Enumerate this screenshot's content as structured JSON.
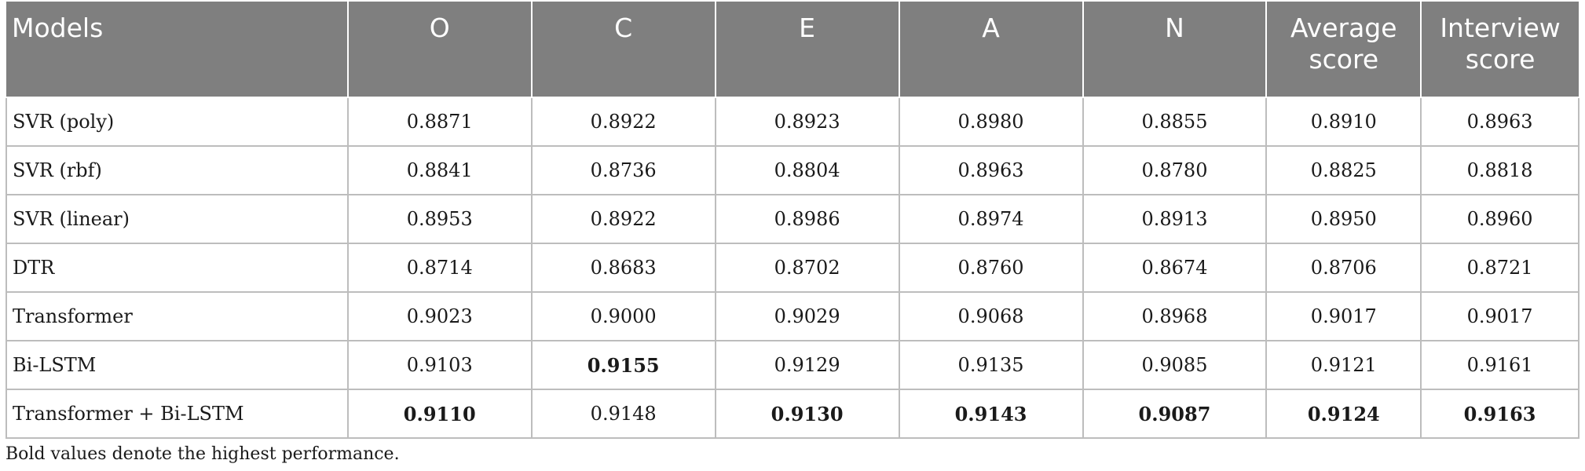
{
  "table": {
    "headers": [
      "Models",
      "O",
      "C",
      "E",
      "A",
      "N",
      "Average\nscore",
      "Interview\nscore"
    ],
    "rows": [
      {
        "model": "SVR (poly)",
        "values": [
          "0.8871",
          "0.8922",
          "0.8923",
          "0.8980",
          "0.8855",
          "0.8910",
          "0.8963"
        ],
        "bold": [
          false,
          false,
          false,
          false,
          false,
          false,
          false
        ]
      },
      {
        "model": "SVR (rbf)",
        "values": [
          "0.8841",
          "0.8736",
          "0.8804",
          "0.8963",
          "0.8780",
          "0.8825",
          "0.8818"
        ],
        "bold": [
          false,
          false,
          false,
          false,
          false,
          false,
          false
        ]
      },
      {
        "model": "SVR (linear)",
        "values": [
          "0.8953",
          "0.8922",
          "0.8986",
          "0.8974",
          "0.8913",
          "0.8950",
          "0.8960"
        ],
        "bold": [
          false,
          false,
          false,
          false,
          false,
          false,
          false
        ]
      },
      {
        "model": "DTR",
        "values": [
          "0.8714",
          "0.8683",
          "0.8702",
          "0.8760",
          "0.8674",
          "0.8706",
          "0.8721"
        ],
        "bold": [
          false,
          false,
          false,
          false,
          false,
          false,
          false
        ]
      },
      {
        "model": "Transformer",
        "values": [
          "0.9023",
          "0.9000",
          "0.9029",
          "0.9068",
          "0.8968",
          "0.9017",
          "0.9017"
        ],
        "bold": [
          false,
          false,
          false,
          false,
          false,
          false,
          false
        ]
      },
      {
        "model": "Bi-LSTM",
        "values": [
          "0.9103",
          "0.9155",
          "0.9129",
          "0.9135",
          "0.9085",
          "0.9121",
          "0.9161"
        ],
        "bold": [
          false,
          true,
          false,
          false,
          false,
          false,
          false
        ]
      },
      {
        "model": "Transformer + Bi-LSTM",
        "values": [
          "0.9110",
          "0.9148",
          "0.9130",
          "0.9143",
          "0.9087",
          "0.9124",
          "0.9163"
        ],
        "bold": [
          true,
          false,
          true,
          true,
          true,
          true,
          true
        ]
      }
    ]
  },
  "footnote": "Bold values denote the highest performance.",
  "colors": {
    "header_bg": "#7f7f7f",
    "header_text": "#ffffff",
    "grid": "#bdbdbd"
  }
}
